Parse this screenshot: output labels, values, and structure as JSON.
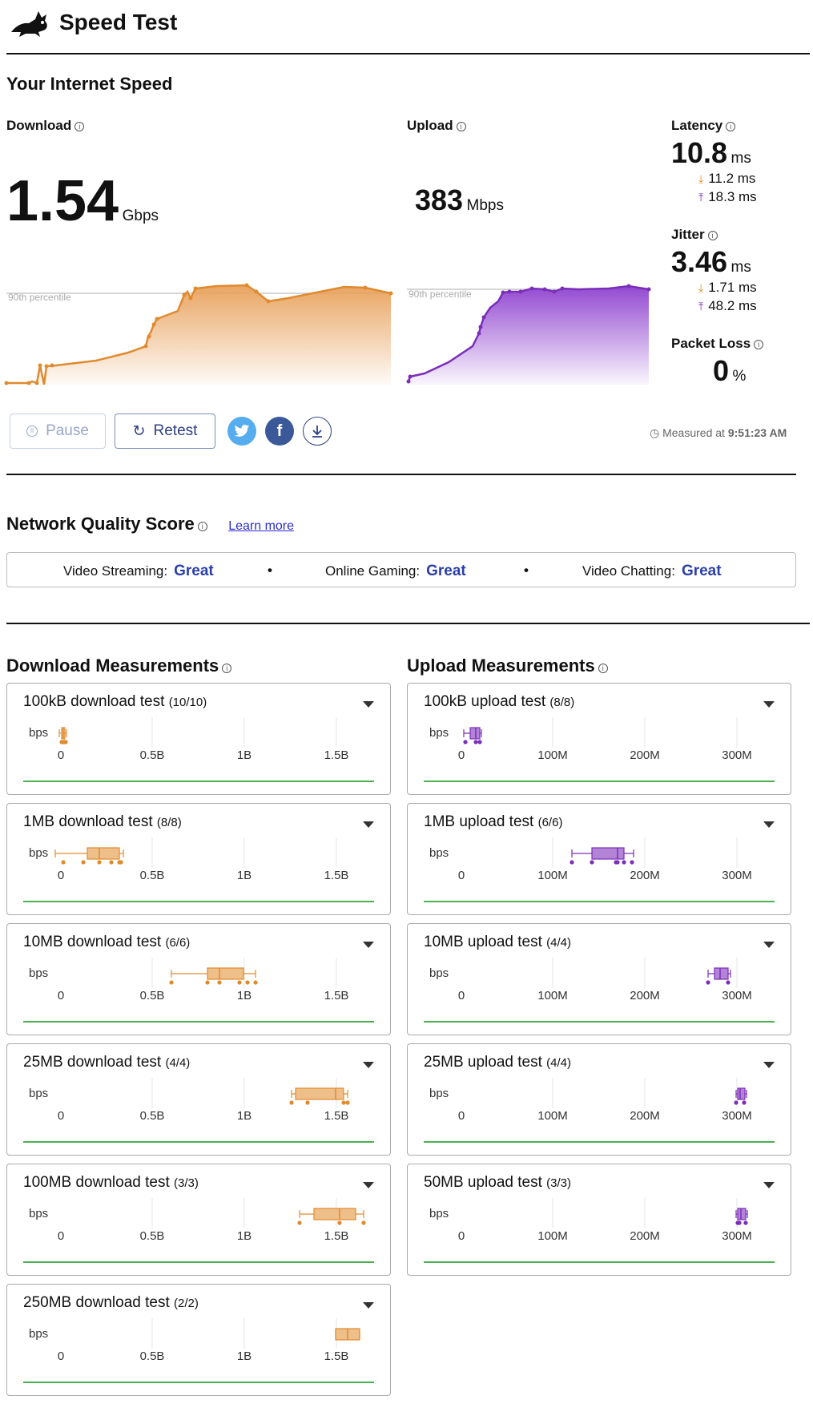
{
  "header": {
    "title": "Speed Test",
    "logo_icon": "rabbit-icon"
  },
  "speed": {
    "section_title": "Your Internet Speed",
    "download": {
      "label": "Download",
      "value": "1.54",
      "unit": "Gbps",
      "percentile_label": "90th percentile"
    },
    "upload": {
      "label": "Upload",
      "value": "383",
      "unit": "Mbps",
      "percentile_label": "90th percentile"
    },
    "latency": {
      "label": "Latency",
      "value": "10.8",
      "unit": "ms",
      "down": "11.2 ms",
      "up": "18.3 ms"
    },
    "jitter": {
      "label": "Jitter",
      "value": "3.46",
      "unit": "ms",
      "down": "1.71 ms",
      "up": "48.2 ms"
    },
    "packet_loss": {
      "label": "Packet Loss",
      "value": "0",
      "unit": "%"
    }
  },
  "controls": {
    "pause_label": "Pause",
    "retest_label": "Retest",
    "measured_prefix": "Measured at",
    "measured_time": "9:51:23 AM"
  },
  "quality": {
    "title": "Network Quality Score",
    "learn_more": "Learn more",
    "items": [
      {
        "label": "Video Streaming:",
        "value": "Great"
      },
      {
        "label": "Online Gaming:",
        "value": "Great"
      },
      {
        "label": "Video Chatting:",
        "value": "Great"
      }
    ],
    "separator": "•"
  },
  "download_measurements": {
    "title": "Download Measurements",
    "axis_unit": "bps",
    "ticks": [
      "0",
      "0.5B",
      "1B",
      "1.5B"
    ],
    "tests": [
      {
        "name": "100kB download test",
        "count": "(10/10)"
      },
      {
        "name": "1MB download test",
        "count": "(8/8)"
      },
      {
        "name": "10MB download test",
        "count": "(6/6)"
      },
      {
        "name": "25MB download test",
        "count": "(4/4)"
      },
      {
        "name": "100MB download test",
        "count": "(3/3)"
      },
      {
        "name": "250MB download test",
        "count": "(2/2)"
      }
    ]
  },
  "upload_measurements": {
    "title": "Upload Measurements",
    "axis_unit": "bps",
    "ticks": [
      "0",
      "100M",
      "200M",
      "300M"
    ],
    "tests": [
      {
        "name": "100kB upload test",
        "count": "(8/8)"
      },
      {
        "name": "1MB upload test",
        "count": "(6/6)"
      },
      {
        "name": "10MB upload test",
        "count": "(4/4)"
      },
      {
        "name": "25MB upload test",
        "count": "(4/4)"
      },
      {
        "name": "50MB upload test",
        "count": "(3/3)"
      }
    ]
  },
  "colors": {
    "download": "#e08a2e",
    "download_fill": "#efbf8a",
    "upload": "#7a2fb8",
    "upload_fill": "#b383d8",
    "quality_value": "#2b3fa8",
    "button_text": "#2d3e84",
    "twitter": "#55acee",
    "facebook": "#3b5998",
    "baseline": "#4caf50"
  }
}
